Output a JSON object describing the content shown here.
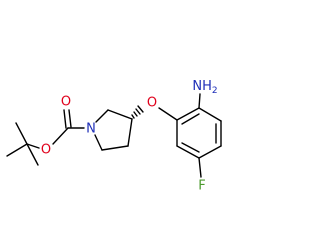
{
  "atoms": [
    {
      "label": "O"
    },
    {
      "label": "O"
    },
    {
      "label": "N"
    },
    {
      "label": "O"
    },
    {
      "label": "NH",
      "subscript": "2"
    },
    {
      "label": "F"
    }
  ]
}
